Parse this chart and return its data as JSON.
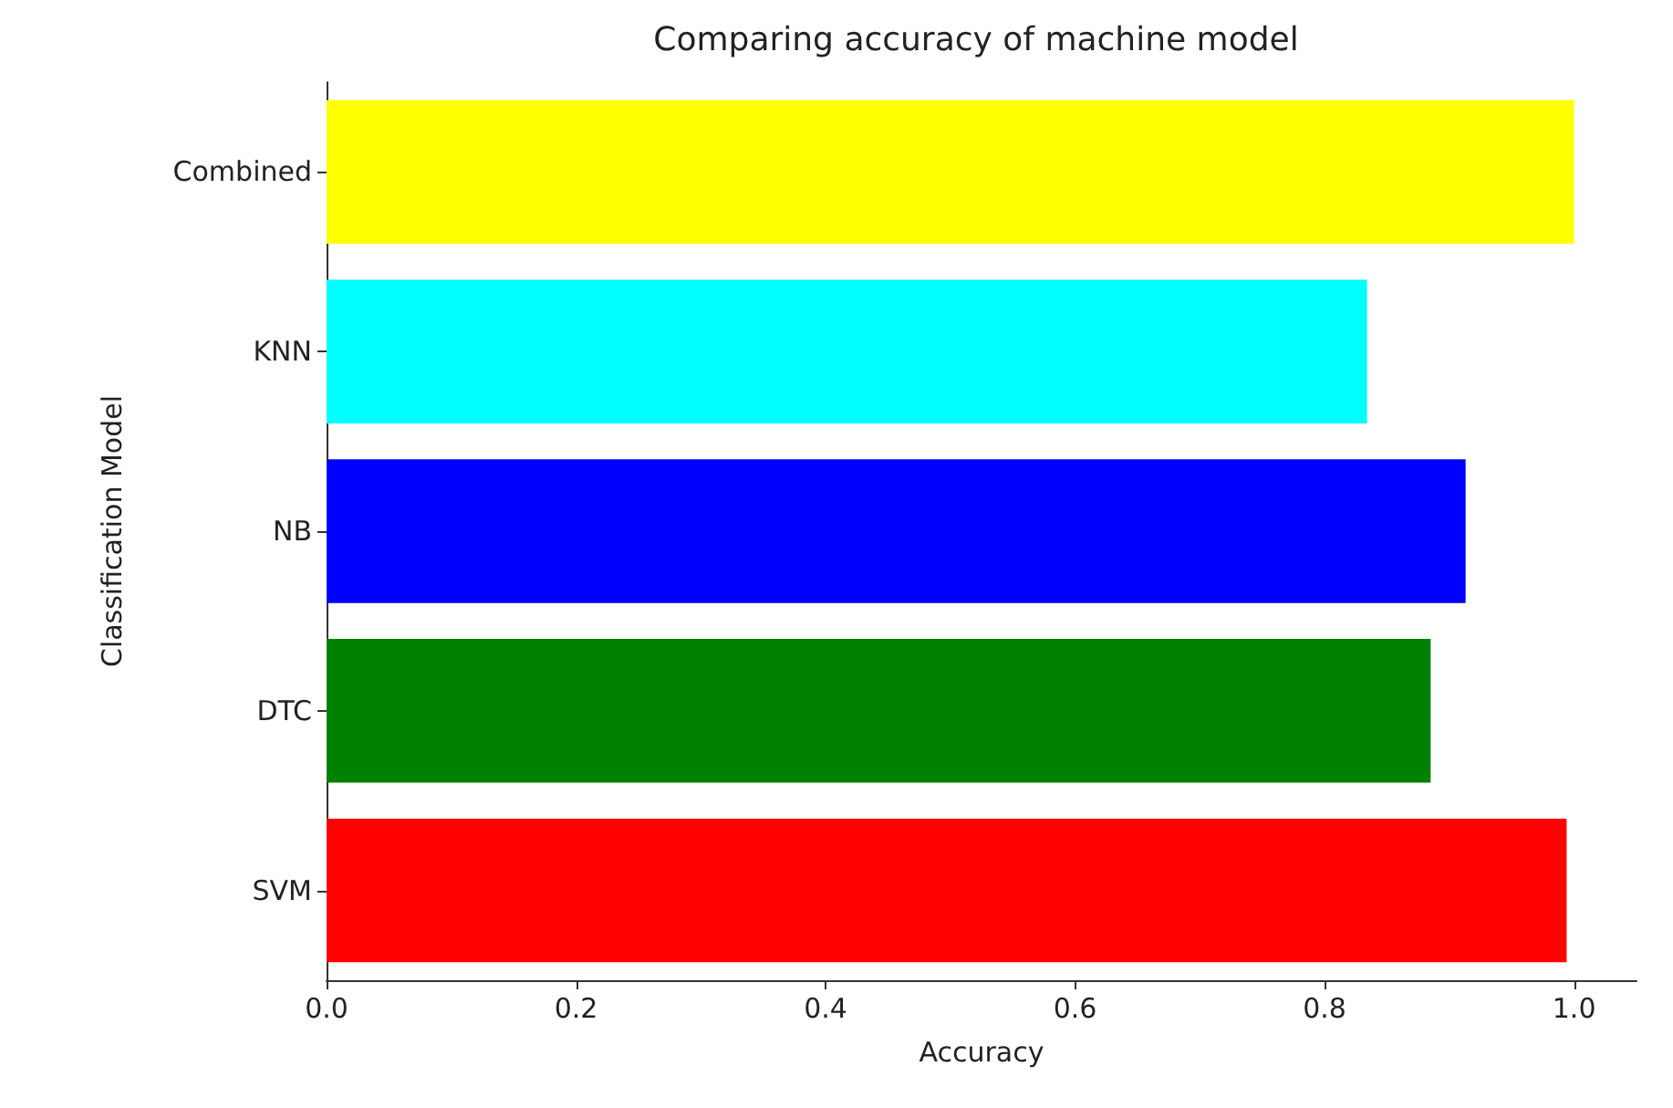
{
  "chart_data": {
    "type": "bar",
    "orientation": "horizontal",
    "title": "Comparing accuracy of machine model",
    "xlabel": "Accuracy",
    "ylabel": "Classification Model",
    "categories": [
      "Combined",
      "KNN",
      "NB",
      "DTC",
      "SVM"
    ],
    "values": [
      1.0,
      0.834,
      0.913,
      0.885,
      0.994
    ],
    "colors": [
      "#ffff00",
      "#00ffff",
      "#0000ff",
      "#008000",
      "#ff0000"
    ],
    "xlim": [
      0,
      1.05
    ],
    "xticks": [
      {
        "value": 0,
        "label": "0.0"
      },
      {
        "value": 0.2,
        "label": "0.2"
      },
      {
        "value": 0.4,
        "label": "0.4"
      },
      {
        "value": 0.6,
        "label": "0.6"
      },
      {
        "value": 0.8,
        "label": "0.8"
      },
      {
        "value": 1,
        "label": "1.0"
      }
    ],
    "grid": false
  }
}
